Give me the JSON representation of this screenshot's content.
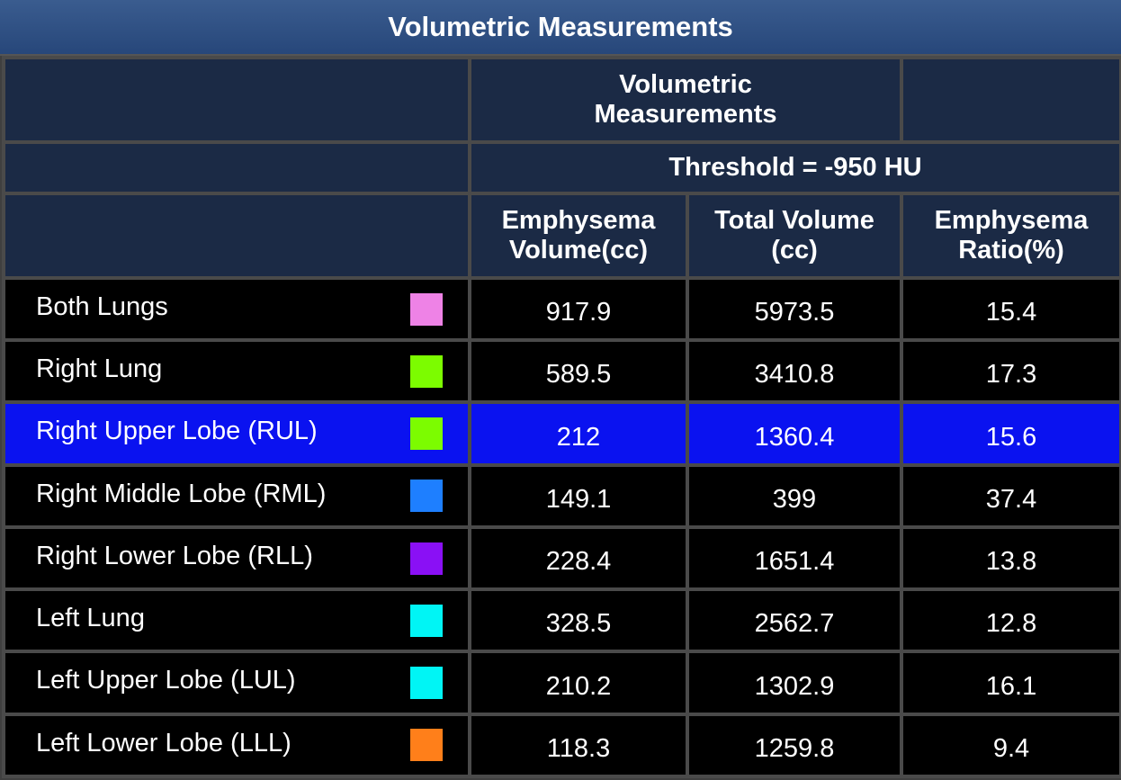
{
  "title": "Volumetric Measurements",
  "header": {
    "group_label": "Volumetric Measurements",
    "threshold_label": "Threshold = -950 HU",
    "columns": [
      {
        "line1": "Emphysema",
        "line2": "Volume(cc)"
      },
      {
        "line1": "Total Volume",
        "line2": "(cc)"
      },
      {
        "line1": "Emphysema",
        "line2": "Ratio(%)"
      }
    ]
  },
  "rows": [
    {
      "label": "Both Lungs",
      "color": "#ee82e6",
      "emphysema_volume": "917.9",
      "total_volume": "5973.5",
      "ratio": "15.4",
      "selected": false
    },
    {
      "label": "Right Lung",
      "color": "#7cfc00",
      "emphysema_volume": "589.5",
      "total_volume": "3410.8",
      "ratio": "17.3",
      "selected": false
    },
    {
      "label": "Right Upper Lobe (RUL)",
      "color": "#7cfc00",
      "emphysema_volume": "212",
      "total_volume": "1360.4",
      "ratio": "15.6",
      "selected": true
    },
    {
      "label": "Right Middle Lobe (RML)",
      "color": "#1e7fff",
      "emphysema_volume": "149.1",
      "total_volume": "399",
      "ratio": "37.4",
      "selected": false
    },
    {
      "label": "Right Lower Lobe (RLL)",
      "color": "#8a10f5",
      "emphysema_volume": "228.4",
      "total_volume": "1651.4",
      "ratio": "13.8",
      "selected": false
    },
    {
      "label": "Left Lung",
      "color": "#00f5f5",
      "emphysema_volume": "328.5",
      "total_volume": "2562.7",
      "ratio": "12.8",
      "selected": false
    },
    {
      "label": "Left Upper Lobe (LUL)",
      "color": "#00f5f5",
      "emphysema_volume": "210.2",
      "total_volume": "1302.9",
      "ratio": "16.1",
      "selected": false
    },
    {
      "label": "Left Lower Lobe (LLL)",
      "color": "#ff7f1a",
      "emphysema_volume": "118.3",
      "total_volume": "1259.8",
      "ratio": "9.4",
      "selected": false
    }
  ],
  "colors": {
    "title_bar": "#2c4c80",
    "header_cell": "#1b2a45",
    "row_bg": "#000000",
    "selected_row_bg": "#0a12f0",
    "grid_line": "#4a4a4a"
  }
}
